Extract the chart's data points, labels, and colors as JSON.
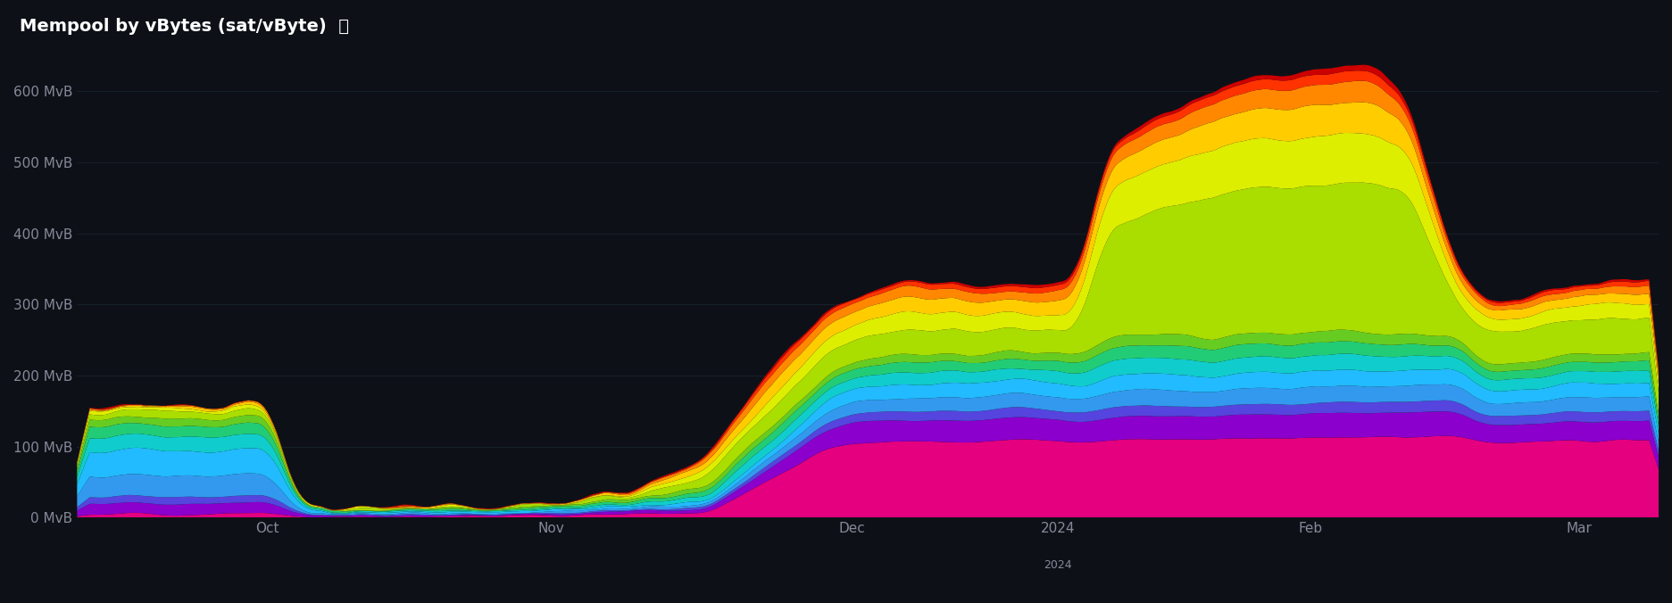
{
  "title": "Mempool by vBytes (sat/vByte)  ⤓",
  "background_color": "#0d1117",
  "text_color": "#888899",
  "grid_color": "#1e2a38",
  "title_color": "#ffffff",
  "ylim": [
    0,
    650
  ],
  "ytick_labels": [
    "0 MvB",
    "100 MvB",
    "200 MvB",
    "300 MvB",
    "400 MvB",
    "500 MvB",
    "600 MvB"
  ],
  "xtick_labels": [
    "Oct",
    "Nov",
    "Dec",
    "2024",
    "Feb",
    "Mar"
  ],
  "layer_colors": [
    "#e4007f",
    "#8b00cc",
    "#5544dd",
    "#3399ee",
    "#22bbff",
    "#11cccc",
    "#22cc77",
    "#66cc22",
    "#aadd00",
    "#ddee00",
    "#ffcc00",
    "#ff8800",
    "#ff3300",
    "#cc0000"
  ],
  "n_points": 500
}
